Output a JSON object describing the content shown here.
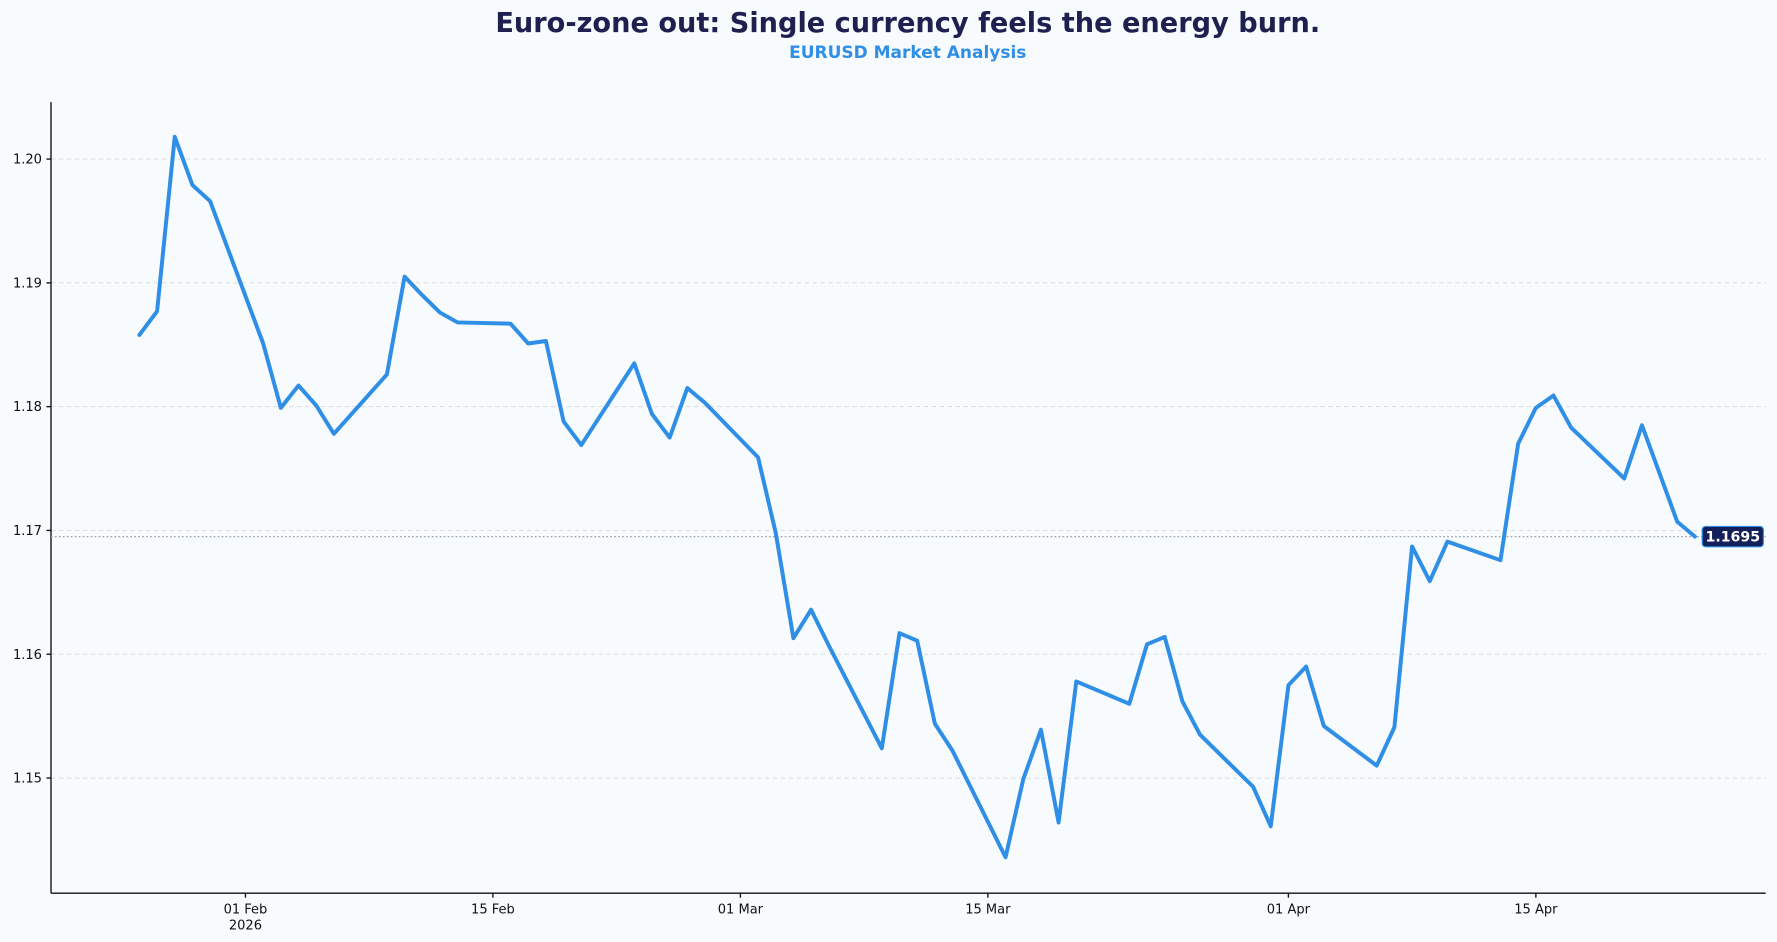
{
  "chart_data": {
    "type": "line",
    "title": "Euro-zone out: Single currency feels the energy burn.",
    "subtitle": "EURUSD Market Analysis",
    "xlabel": "",
    "ylabel": "",
    "xlim": [
      "2026-01-21",
      "2026-04-28"
    ],
    "ylim": [
      1.1407,
      1.2046
    ],
    "grid": "horizontal dashed",
    "line_color": "#2f8fe6",
    "badge_color": "#14205a",
    "y_ticks": [
      "1.15",
      "1.16",
      "1.17",
      "1.18",
      "1.19",
      "1.20"
    ],
    "x_ticks": [
      {
        "date": "2026-02-01",
        "label": "01 Feb",
        "sublabel": "2026"
      },
      {
        "date": "2026-02-15",
        "label": "15 Feb",
        "sublabel": ""
      },
      {
        "date": "2026-03-01",
        "label": "01 Mar",
        "sublabel": ""
      },
      {
        "date": "2026-03-15",
        "label": "15 Mar",
        "sublabel": ""
      },
      {
        "date": "2026-04-01",
        "label": "01 Apr",
        "sublabel": ""
      },
      {
        "date": "2026-04-15",
        "label": "15 Apr",
        "sublabel": ""
      }
    ],
    "last_value_label": "1.1695",
    "series": [
      {
        "x": [
          "2026-01-26",
          "2026-01-27",
          "2026-01-28",
          "2026-01-29",
          "2026-01-30",
          "2026-02-02",
          "2026-02-03",
          "2026-02-04",
          "2026-02-05",
          "2026-02-06",
          "2026-02-09",
          "2026-02-10",
          "2026-02-11",
          "2026-02-12",
          "2026-02-13",
          "2026-02-16",
          "2026-02-17",
          "2026-02-18",
          "2026-02-19",
          "2026-02-20",
          "2026-02-23",
          "2026-02-24",
          "2026-02-25",
          "2026-02-26",
          "2026-02-27",
          "2026-03-02",
          "2026-03-03",
          "2026-03-04",
          "2026-03-05",
          "2026-03-06",
          "2026-03-09",
          "2026-03-10",
          "2026-03-11",
          "2026-03-12",
          "2026-03-13",
          "2026-03-16",
          "2026-03-17",
          "2026-03-18",
          "2026-03-19",
          "2026-03-20",
          "2026-03-23",
          "2026-03-24",
          "2026-03-25",
          "2026-03-26",
          "2026-03-27",
          "2026-03-30",
          "2026-03-31",
          "2026-04-01",
          "2026-04-02",
          "2026-04-03",
          "2026-04-06",
          "2026-04-07",
          "2026-04-08",
          "2026-04-09",
          "2026-04-10",
          "2026-04-13",
          "2026-04-14",
          "2026-04-15",
          "2026-04-16",
          "2026-04-17",
          "2026-04-20",
          "2026-04-21",
          "2026-04-22",
          "2026-04-23",
          "2026-04-24"
        ],
        "values": [
          1.1858,
          1.1877,
          1.2018,
          1.1979,
          1.1966,
          1.1851,
          1.1799,
          1.1817,
          1.1801,
          1.1778,
          1.1826,
          1.1905,
          1.189,
          1.1876,
          1.1868,
          1.1867,
          1.1851,
          1.1853,
          1.1788,
          1.1769,
          1.1835,
          1.1794,
          1.1775,
          1.1815,
          1.1803,
          1.1759,
          1.1698,
          1.1613,
          1.1636,
          1.1607,
          1.1524,
          1.1617,
          1.1611,
          1.1544,
          1.1522,
          1.1436,
          1.1499,
          1.1539,
          1.1464,
          1.1578,
          1.156,
          1.1608,
          1.1614,
          1.1562,
          1.1535,
          1.1493,
          1.1461,
          1.1575,
          1.159,
          1.1542,
          1.151,
          1.1541,
          1.1687,
          1.1659,
          1.1691,
          1.1676,
          1.177,
          1.1799,
          1.1809,
          1.1783,
          1.1742,
          1.1785,
          1.1746,
          1.1707,
          1.1695
        ]
      }
    ]
  }
}
